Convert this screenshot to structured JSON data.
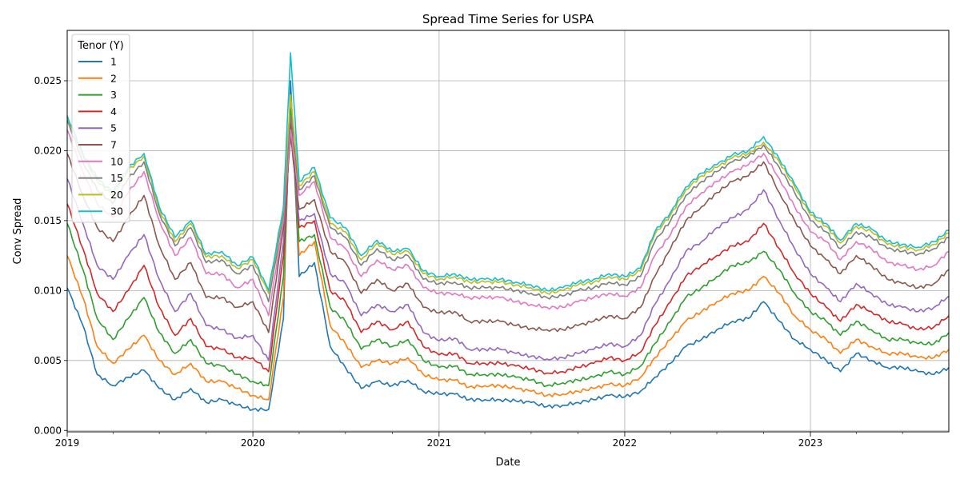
{
  "chart_data": {
    "type": "line",
    "title": "Spread Time Series for USPA",
    "xlabel": "Date",
    "ylabel": "Conv Spread",
    "x_ticks": [
      "2019",
      "2020",
      "2021",
      "2022",
      "2023"
    ],
    "y_ticks": [
      "0.000",
      "0.005",
      "0.010",
      "0.015",
      "0.020",
      "0.025"
    ],
    "xlim": [
      "2019-01-01",
      "2023-09-30"
    ],
    "ylim": [
      -0.0001,
      0.0286
    ],
    "grid": true,
    "legend": {
      "title": "Tenor (Y)",
      "placement": "upper-left"
    },
    "x_dates": [
      "2019-01-01",
      "2019-02-01",
      "2019-03-01",
      "2019-04-01",
      "2019-05-01",
      "2019-06-01",
      "2019-07-01",
      "2019-08-01",
      "2019-09-01",
      "2019-10-01",
      "2019-11-01",
      "2019-12-01",
      "2020-01-01",
      "2020-02-01",
      "2020-03-01",
      "2020-03-15",
      "2020-04-01",
      "2020-05-01",
      "2020-06-01",
      "2020-07-01",
      "2020-08-01",
      "2020-09-01",
      "2020-10-01",
      "2020-11-01",
      "2020-12-01",
      "2021-01-01",
      "2021-02-01",
      "2021-03-01",
      "2021-04-01",
      "2021-05-01",
      "2021-06-01",
      "2021-07-01",
      "2021-08-01",
      "2021-09-01",
      "2021-10-01",
      "2021-11-01",
      "2021-12-01",
      "2022-01-01",
      "2022-02-01",
      "2022-03-01",
      "2022-04-01",
      "2022-05-01",
      "2022-06-01",
      "2022-07-01",
      "2022-08-01",
      "2022-09-01",
      "2022-10-01",
      "2022-11-01",
      "2022-12-01",
      "2023-01-01",
      "2023-02-01",
      "2023-03-01",
      "2023-04-01",
      "2023-05-01",
      "2023-06-01",
      "2023-07-01",
      "2023-08-01",
      "2023-09-01",
      "2023-09-30"
    ],
    "series": [
      {
        "name": "1",
        "color": "#1f77b4",
        "values": [
          0.0102,
          0.0075,
          0.004,
          0.0032,
          0.0038,
          0.0043,
          0.003,
          0.0022,
          0.003,
          0.002,
          0.0022,
          0.0018,
          0.0015,
          0.0015,
          0.008,
          0.025,
          0.011,
          0.012,
          0.006,
          0.0045,
          0.003,
          0.0035,
          0.0032,
          0.0036,
          0.0028,
          0.0026,
          0.0026,
          0.0022,
          0.0022,
          0.0022,
          0.0021,
          0.002,
          0.0017,
          0.0018,
          0.002,
          0.0022,
          0.0025,
          0.0024,
          0.0028,
          0.0038,
          0.0048,
          0.006,
          0.0065,
          0.0072,
          0.0078,
          0.008,
          0.0092,
          0.0078,
          0.0065,
          0.0058,
          0.005,
          0.0042,
          0.0055,
          0.005,
          0.0045,
          0.0045,
          0.0042,
          0.004,
          0.0045
        ]
      },
      {
        "name": "2",
        "color": "#ff7f0e",
        "values": [
          0.0125,
          0.0095,
          0.006,
          0.0048,
          0.0058,
          0.0068,
          0.005,
          0.004,
          0.0048,
          0.0035,
          0.0035,
          0.003,
          0.0025,
          0.0022,
          0.0095,
          0.024,
          0.0125,
          0.0135,
          0.0075,
          0.0062,
          0.0045,
          0.005,
          0.0048,
          0.0052,
          0.004,
          0.0036,
          0.0036,
          0.0031,
          0.0032,
          0.0032,
          0.003,
          0.0028,
          0.0025,
          0.0026,
          0.0028,
          0.003,
          0.0033,
          0.0032,
          0.0038,
          0.0052,
          0.0065,
          0.0078,
          0.0085,
          0.0092,
          0.0098,
          0.01,
          0.011,
          0.0098,
          0.0082,
          0.0072,
          0.0065,
          0.0055,
          0.0065,
          0.006,
          0.0055,
          0.0055,
          0.0052,
          0.0052,
          0.0058
        ]
      },
      {
        "name": "3",
        "color": "#2ca02c",
        "values": [
          0.0148,
          0.0115,
          0.008,
          0.0065,
          0.008,
          0.0095,
          0.007,
          0.0055,
          0.0065,
          0.0048,
          0.0046,
          0.004,
          0.0035,
          0.0032,
          0.011,
          0.023,
          0.0135,
          0.014,
          0.0088,
          0.0078,
          0.0058,
          0.0065,
          0.006,
          0.0065,
          0.005,
          0.0045,
          0.0046,
          0.004,
          0.004,
          0.004,
          0.0038,
          0.0036,
          0.0032,
          0.0034,
          0.0036,
          0.0038,
          0.0042,
          0.004,
          0.0046,
          0.0062,
          0.0078,
          0.0095,
          0.0102,
          0.011,
          0.0118,
          0.012,
          0.0128,
          0.0115,
          0.0098,
          0.0085,
          0.0078,
          0.0068,
          0.0078,
          0.0072,
          0.0065,
          0.0065,
          0.0062,
          0.0062,
          0.007
        ]
      },
      {
        "name": "4",
        "color": "#d62728",
        "values": [
          0.0162,
          0.013,
          0.0098,
          0.0085,
          0.01,
          0.0118,
          0.0088,
          0.0068,
          0.008,
          0.006,
          0.0058,
          0.0052,
          0.0052,
          0.0042,
          0.0125,
          0.022,
          0.0145,
          0.015,
          0.01,
          0.0092,
          0.007,
          0.0078,
          0.0072,
          0.0078,
          0.006,
          0.0054,
          0.0055,
          0.0048,
          0.0048,
          0.0048,
          0.0046,
          0.0044,
          0.0041,
          0.0042,
          0.0045,
          0.0048,
          0.0052,
          0.005,
          0.0056,
          0.0075,
          0.0092,
          0.011,
          0.0118,
          0.0125,
          0.0132,
          0.0135,
          0.0148,
          0.013,
          0.0112,
          0.0098,
          0.0088,
          0.0078,
          0.009,
          0.0085,
          0.0078,
          0.0076,
          0.0072,
          0.0074,
          0.0082
        ]
      },
      {
        "name": "5",
        "color": "#9467bd",
        "values": [
          0.018,
          0.0148,
          0.0118,
          0.0108,
          0.0125,
          0.014,
          0.0108,
          0.0085,
          0.0098,
          0.0075,
          0.0072,
          0.0066,
          0.0068,
          0.005,
          0.0135,
          0.0215,
          0.015,
          0.0155,
          0.0112,
          0.0105,
          0.0082,
          0.009,
          0.0085,
          0.009,
          0.007,
          0.0064,
          0.0066,
          0.0058,
          0.0058,
          0.0058,
          0.0055,
          0.0053,
          0.0051,
          0.0052,
          0.0055,
          0.0058,
          0.0062,
          0.006,
          0.0068,
          0.009,
          0.0108,
          0.0128,
          0.0135,
          0.0145,
          0.0152,
          0.0158,
          0.0172,
          0.015,
          0.013,
          0.0112,
          0.0102,
          0.0092,
          0.0105,
          0.0098,
          0.009,
          0.0088,
          0.0085,
          0.0088,
          0.0096
        ]
      },
      {
        "name": "7",
        "color": "#8c564b",
        "values": [
          0.0198,
          0.0168,
          0.0145,
          0.0135,
          0.0152,
          0.0168,
          0.0132,
          0.0108,
          0.012,
          0.0095,
          0.0095,
          0.0088,
          0.0092,
          0.007,
          0.0145,
          0.021,
          0.0158,
          0.0165,
          0.0128,
          0.012,
          0.0098,
          0.0108,
          0.01,
          0.0105,
          0.0088,
          0.0084,
          0.0085,
          0.0078,
          0.0078,
          0.0078,
          0.0075,
          0.0073,
          0.0072,
          0.0072,
          0.0075,
          0.0078,
          0.0082,
          0.008,
          0.0088,
          0.011,
          0.013,
          0.015,
          0.016,
          0.017,
          0.0178,
          0.0182,
          0.0192,
          0.017,
          0.015,
          0.0132,
          0.0122,
          0.0112,
          0.0125,
          0.0118,
          0.0108,
          0.0105,
          0.0102,
          0.0105,
          0.0115
        ]
      },
      {
        "name": "10",
        "color": "#e377c2",
        "values": [
          0.0215,
          0.0185,
          0.0162,
          0.0152,
          0.017,
          0.0185,
          0.015,
          0.0125,
          0.0138,
          0.0112,
          0.0112,
          0.0102,
          0.0108,
          0.0082,
          0.015,
          0.0215,
          0.0168,
          0.0178,
          0.0138,
          0.013,
          0.011,
          0.0122,
          0.0115,
          0.0118,
          0.0102,
          0.0098,
          0.0098,
          0.0095,
          0.0095,
          0.0095,
          0.0092,
          0.009,
          0.0088,
          0.0088,
          0.0092,
          0.0095,
          0.0098,
          0.0096,
          0.0102,
          0.0125,
          0.014,
          0.016,
          0.017,
          0.0178,
          0.0185,
          0.019,
          0.0198,
          0.018,
          0.016,
          0.0142,
          0.0135,
          0.0122,
          0.0135,
          0.013,
          0.012,
          0.0118,
          0.0115,
          0.0118,
          0.0128
        ]
      },
      {
        "name": "15",
        "color": "#7f7f7f",
        "values": [
          0.0222,
          0.0192,
          0.0172,
          0.0162,
          0.018,
          0.0192,
          0.0155,
          0.0132,
          0.0145,
          0.012,
          0.0122,
          0.0112,
          0.0118,
          0.0092,
          0.0155,
          0.0225,
          0.0172,
          0.0182,
          0.0145,
          0.0138,
          0.0118,
          0.013,
          0.0122,
          0.0125,
          0.0108,
          0.0105,
          0.0106,
          0.0102,
          0.0102,
          0.0102,
          0.01,
          0.0098,
          0.0095,
          0.0096,
          0.01,
          0.0102,
          0.0106,
          0.0104,
          0.011,
          0.0135,
          0.015,
          0.0168,
          0.0178,
          0.0185,
          0.0192,
          0.0196,
          0.0204,
          0.0188,
          0.017,
          0.015,
          0.0142,
          0.013,
          0.0142,
          0.0138,
          0.013,
          0.0128,
          0.0126,
          0.013,
          0.0138
        ]
      },
      {
        "name": "20",
        "color": "#bcbd22",
        "values": [
          0.0224,
          0.0196,
          0.0178,
          0.0168,
          0.0186,
          0.0196,
          0.0158,
          0.0135,
          0.0148,
          0.0124,
          0.0125,
          0.0116,
          0.0122,
          0.0098,
          0.0158,
          0.024,
          0.0175,
          0.0185,
          0.0148,
          0.0142,
          0.0122,
          0.0134,
          0.0126,
          0.0128,
          0.0112,
          0.0108,
          0.011,
          0.0106,
          0.0106,
          0.0106,
          0.0104,
          0.0102,
          0.0098,
          0.01,
          0.0104,
          0.0106,
          0.011,
          0.0108,
          0.0114,
          0.014,
          0.0154,
          0.0172,
          0.0182,
          0.0188,
          0.0195,
          0.0198,
          0.0206,
          0.0192,
          0.0174,
          0.0154,
          0.0146,
          0.0134,
          0.0146,
          0.0142,
          0.0133,
          0.0131,
          0.0129,
          0.0133,
          0.0141
        ]
      },
      {
        "name": "30",
        "color": "#17becf",
        "values": [
          0.0225,
          0.0198,
          0.018,
          0.017,
          0.0188,
          0.0198,
          0.016,
          0.0138,
          0.015,
          0.0126,
          0.0128,
          0.0118,
          0.0124,
          0.01,
          0.016,
          0.027,
          0.0178,
          0.0188,
          0.0152,
          0.0145,
          0.0125,
          0.0136,
          0.0128,
          0.013,
          0.0114,
          0.011,
          0.0112,
          0.0108,
          0.0108,
          0.0108,
          0.0106,
          0.0104,
          0.01,
          0.0102,
          0.0106,
          0.0108,
          0.0112,
          0.011,
          0.0116,
          0.0142,
          0.0156,
          0.0174,
          0.0184,
          0.019,
          0.0197,
          0.02,
          0.021,
          0.0194,
          0.0176,
          0.0156,
          0.0148,
          0.0136,
          0.0148,
          0.0144,
          0.0135,
          0.0133,
          0.0131,
          0.0135,
          0.0143
        ]
      }
    ]
  }
}
